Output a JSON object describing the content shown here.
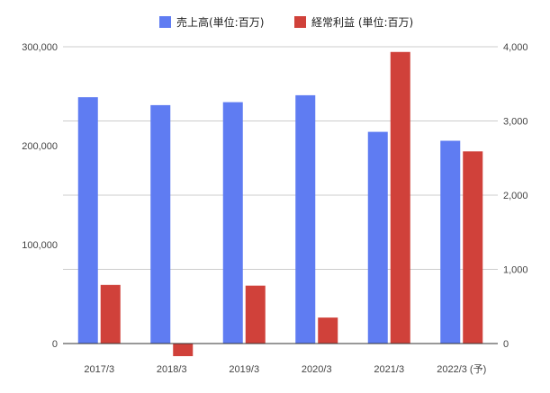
{
  "chart_data": {
    "type": "bar",
    "categories": [
      "2017/3",
      "2018/3",
      "2019/3",
      "2020/3",
      "2021/3",
      "2022/3 (予)"
    ],
    "series": [
      {
        "name": "売上高(単位:百万)",
        "axis": "left",
        "color": "#5f7cf2",
        "values": [
          249000,
          241000,
          244000,
          251000,
          214000,
          205000
        ]
      },
      {
        "name": "経常利益 (単位:百万)",
        "axis": "right",
        "color": "#d0413a",
        "values": [
          790,
          -170,
          780,
          350,
          3930,
          2590
        ]
      }
    ],
    "y_left": {
      "min": 0,
      "max": 300000,
      "ticks": [
        0,
        100000,
        200000,
        300000
      ],
      "tick_labels": [
        "0",
        "100,000",
        "200,000",
        "300,000"
      ]
    },
    "y_right": {
      "min": 0,
      "max": 4000,
      "ticks": [
        0,
        1000,
        2000,
        3000,
        4000
      ],
      "tick_labels": [
        "0",
        "1,000",
        "2,000",
        "3,000",
        "4,000"
      ]
    },
    "grid": true,
    "legend_position": "top-center"
  }
}
